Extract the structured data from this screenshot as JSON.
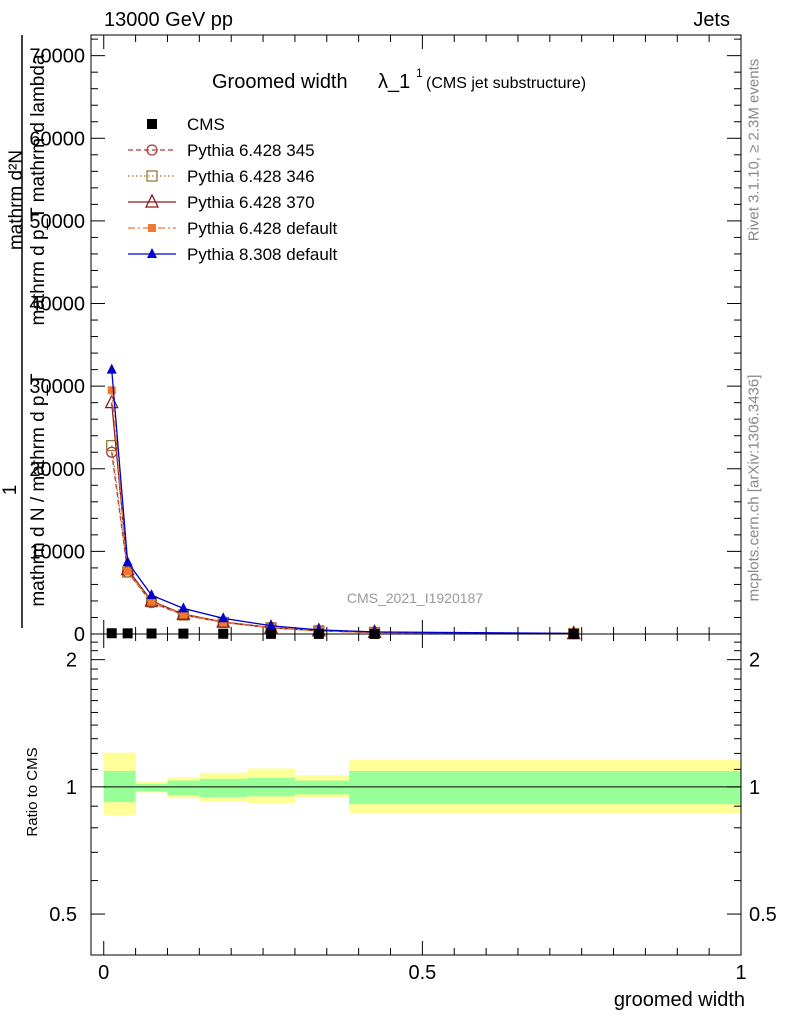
{
  "header": {
    "energy_label": "13000 GeV pp",
    "category_label": "Jets"
  },
  "side": {
    "rivet_label": "Rivet 3.1.10, ≥ 2.3M events",
    "mcplots_label": "mcplots.cern.ch [arXiv:1306.3436]"
  },
  "watermark": "CMS_2021_I1920187",
  "chart_data": [
    {
      "type": "line",
      "title": "Groomed width",
      "title_symbol": "λ_1",
      "title_superscript": "1",
      "subtitle": "(CMS jet substructure)",
      "ylabel_top_num": "mathrm d²N",
      "ylabel_top_den": "mathrm d p_T mathrm d lambda",
      "ylabel_bottom_num": "1",
      "ylabel_bottom_den": "mathrm d N / mathrm d p_T",
      "xlim": [
        -0.02,
        1.0
      ],
      "ylim": [
        0,
        72500
      ],
      "yticks": [
        0,
        10000,
        20000,
        30000,
        40000,
        50000,
        60000,
        70000
      ],
      "ytick_labels": [
        "0",
        "10000",
        "20000",
        "30000",
        "40000",
        "50000",
        "60000",
        "70000"
      ],
      "legend_position": "top-left",
      "x": [
        0.0125,
        0.0375,
        0.075,
        0.125,
        0.1875,
        0.2625,
        0.3375,
        0.425,
        0.7375
      ],
      "series": [
        {
          "name": "CMS",
          "color": "#000000",
          "marker": "square-filled",
          "dash": "none",
          "values": [
            90,
            80,
            60,
            45,
            30,
            18,
            12,
            7,
            2
          ]
        },
        {
          "name": "Pythia 6.428 345",
          "color": "#b03a3a",
          "marker": "circle-open",
          "dash": "5,3",
          "values": [
            22000,
            7500,
            3800,
            2300,
            1400,
            750,
            380,
            190,
            50
          ]
        },
        {
          "name": "Pythia 6.428 346",
          "color": "#9a7a3a",
          "marker": "square-open",
          "dash": "1.5,2.5",
          "values": [
            22800,
            7500,
            3900,
            2300,
            1400,
            750,
            380,
            190,
            50
          ]
        },
        {
          "name": "Pythia 6.428 370",
          "color": "#8b1a1a",
          "marker": "triangle-open",
          "dash": "none",
          "values": [
            28000,
            7800,
            4000,
            2400,
            1450,
            780,
            400,
            200,
            55
          ]
        },
        {
          "name": "Pythia 6.428 default",
          "color": "#f07830",
          "marker": "square-filled-small",
          "dash": "7,3,2,3",
          "values": [
            29500,
            7600,
            3900,
            2350,
            1400,
            760,
            385,
            195,
            52
          ]
        },
        {
          "name": "Pythia 8.308 default",
          "color": "#0000cc",
          "marker": "triangle-filled",
          "dash": "none",
          "values": [
            32000,
            8700,
            4700,
            3100,
            1900,
            1000,
            500,
            250,
            70
          ]
        }
      ]
    },
    {
      "type": "area",
      "ylabel": "Ratio to CMS",
      "xlabel": "groomed width",
      "xlim": [
        -0.02,
        1.0
      ],
      "ylim": [
        0.4,
        2.3
      ],
      "log_scale": true,
      "yticks": [
        0.5,
        1,
        2
      ],
      "ytick_labels": [
        "0.5",
        "1",
        "2"
      ],
      "xticks": [
        0,
        0.5,
        1
      ],
      "xtick_labels": [
        "0",
        "0.5",
        "1"
      ],
      "bins": [
        {
          "lo": 0.0,
          "hi": 0.05,
          "inner": [
            0.92,
            1.09
          ],
          "outer": [
            0.855,
            1.205
          ]
        },
        {
          "lo": 0.05,
          "hi": 0.1,
          "inner": [
            0.975,
            1.015
          ],
          "outer": [
            0.97,
            1.03
          ]
        },
        {
          "lo": 0.1,
          "hi": 0.15,
          "inner": [
            0.955,
            1.035
          ],
          "outer": [
            0.94,
            1.055
          ]
        },
        {
          "lo": 0.15,
          "hi": 0.225,
          "inner": [
            0.945,
            1.045
          ],
          "outer": [
            0.925,
            1.08
          ]
        },
        {
          "lo": 0.225,
          "hi": 0.3,
          "inner": [
            0.95,
            1.05
          ],
          "outer": [
            0.915,
            1.105
          ]
        },
        {
          "lo": 0.3,
          "hi": 0.385,
          "inner": [
            0.96,
            1.035
          ],
          "outer": [
            0.945,
            1.065
          ]
        },
        {
          "lo": 0.385,
          "hi": 1.0,
          "inner": [
            0.91,
            1.09
          ],
          "outer": [
            0.865,
            1.16
          ]
        }
      ],
      "inner_color": "#99ff99",
      "outer_color": "#ffff99",
      "reference_value": 1
    }
  ]
}
